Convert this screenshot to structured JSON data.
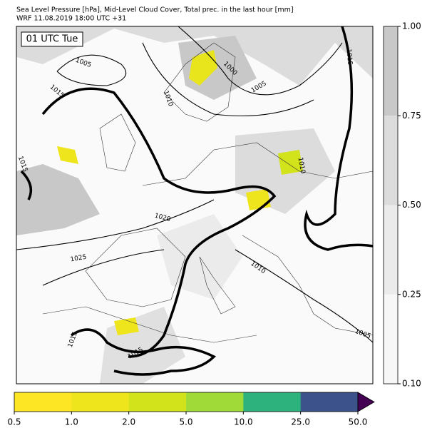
{
  "header": {
    "title": "Sea Level Pressure [hPa], Mid-Level Cloud Cover, Total prec. in the last hour [mm]",
    "subtitle": "WRF 11.08.2019 18:00 UTC +31"
  },
  "map": {
    "time_label": "01 UTC Tue",
    "contour_labels": [
      "1005",
      "1000",
      "1005",
      "1010",
      "1015",
      "1015",
      "1015",
      "1010",
      "1020",
      "1025",
      "1010",
      "1015",
      "1015",
      "1005"
    ]
  },
  "cloud_colorbar": {
    "ticks": [
      {
        "value": 0.1,
        "label": "0.10"
      },
      {
        "value": 0.25,
        "label": "0.25"
      },
      {
        "value": 0.5,
        "label": "0.50"
      },
      {
        "value": 0.75,
        "label": "0.75"
      },
      {
        "value": 1.0,
        "label": "1.00"
      }
    ],
    "colors": [
      "#f7f7f7",
      "#ebebeb",
      "#dcdcdc",
      "#c8c8c8"
    ]
  },
  "precip_colorbar": {
    "ticks": [
      {
        "value": 0.5,
        "label": "0.5"
      },
      {
        "value": 1.0,
        "label": "1.0"
      },
      {
        "value": 2.0,
        "label": "2.0"
      },
      {
        "value": 5.0,
        "label": "5.0"
      },
      {
        "value": 10.0,
        "label": "10.0"
      },
      {
        "value": 25.0,
        "label": "25.0"
      },
      {
        "value": 50.0,
        "label": "50.0"
      }
    ],
    "colors": [
      "#fde725",
      "#efe51c",
      "#d2e21b",
      "#a0da39",
      "#2db27d",
      "#3b528b"
    ],
    "extend_color": "#440154"
  }
}
